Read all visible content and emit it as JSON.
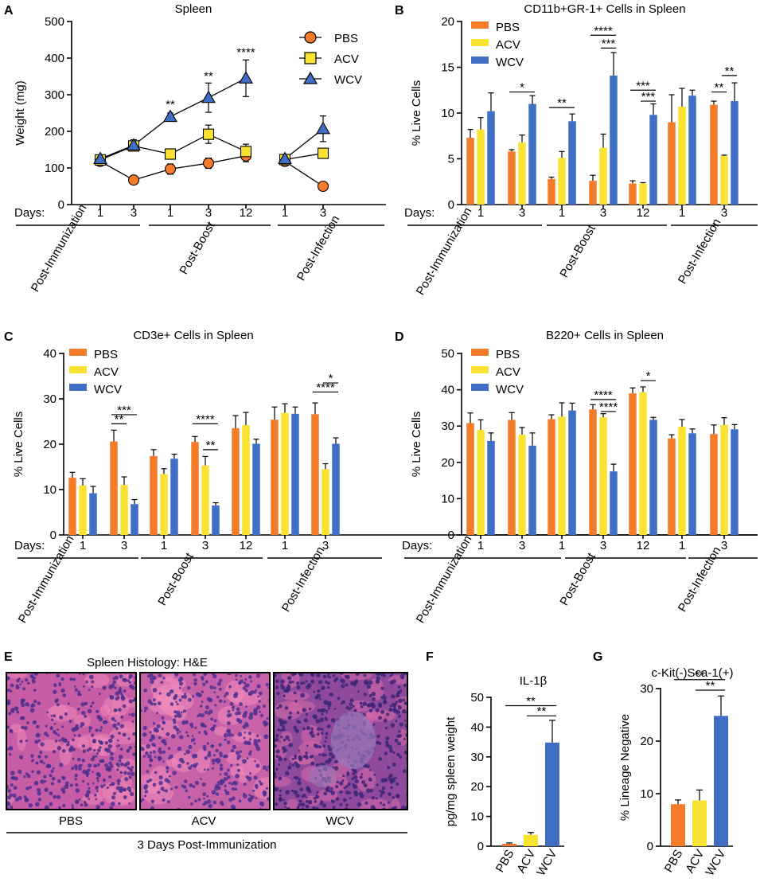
{
  "colors": {
    "PBS": "#F47B2A",
    "ACV": "#F9E232",
    "WCV": "#3F6EC4"
  },
  "groups": [
    "Post-Immunization",
    "Post-Boost",
    "Post-Infection"
  ],
  "days_label": "Days:",
  "chart_data": [
    {
      "panel": "A",
      "type": "line",
      "title": "Spleen",
      "ylabel": "Weight (mg)",
      "ylim": [
        0,
        500
      ],
      "yticks": [
        0,
        100,
        200,
        300,
        400,
        500
      ],
      "days": [
        "1",
        "3",
        "1",
        "3",
        "12",
        "1",
        "3"
      ],
      "legend": [
        "PBS",
        "ACV",
        "WCV"
      ],
      "series": [
        {
          "name": "PBS",
          "values": [
            118,
            67,
            97,
            113,
            133,
            118,
            50
          ],
          "errors": [
            10,
            4,
            14,
            14,
            16,
            10,
            6
          ]
        },
        {
          "name": "ACV",
          "values": [
            122,
            160,
            138,
            192,
            145,
            123,
            140
          ],
          "errors": [
            10,
            12,
            14,
            25,
            20,
            10,
            12
          ]
        },
        {
          "name": "WCV",
          "values": [
            125,
            162,
            240,
            292,
            345,
            125,
            207
          ],
          "errors": [
            8,
            15,
            10,
            40,
            50,
            8,
            35
          ]
        }
      ],
      "segments": [
        [
          0,
          1,
          2,
          3,
          4
        ],
        [
          5,
          6
        ]
      ],
      "annotations": [
        {
          "text": "**",
          "day_index": 2,
          "y": 263
        },
        {
          "text": "**",
          "day_index": 3,
          "y": 340
        },
        {
          "text": "****",
          "day_index": 4,
          "y": 405
        }
      ]
    },
    {
      "panel": "B",
      "type": "bar",
      "title": "CD11b+GR-1+ Cells in Spleen",
      "ylabel": "% Live Cells",
      "ylim": [
        0,
        20
      ],
      "yticks": [
        0,
        5,
        10,
        15,
        20
      ],
      "days": [
        "1",
        "3",
        "1",
        "3",
        "12",
        "1",
        "3"
      ],
      "legend": [
        "PBS",
        "ACV",
        "WCV"
      ],
      "series": [
        {
          "name": "PBS",
          "values": [
            7.3,
            5.8,
            2.8,
            2.6,
            2.3,
            9.0,
            10.9
          ],
          "errors": [
            0.9,
            0.2,
            0.2,
            0.6,
            0.3,
            3.0,
            0.4
          ]
        },
        {
          "name": "ACV",
          "values": [
            8.2,
            6.8,
            5.1,
            6.2,
            2.3,
            10.7,
            5.3
          ],
          "errors": [
            1.3,
            0.8,
            0.7,
            1.5,
            0.1,
            2.0,
            0.1
          ]
        },
        {
          "name": "WCV",
          "values": [
            10.2,
            11.0,
            9.1,
            14.1,
            9.8,
            11.9,
            11.3
          ],
          "errors": [
            2.0,
            0.9,
            0.8,
            2.5,
            1.2,
            0.6,
            2.0
          ]
        }
      ],
      "sig": [
        {
          "text": "*",
          "day_index": 1,
          "from": 0,
          "to": 2,
          "y": 12.3
        },
        {
          "text": "**",
          "day_index": 2,
          "from": 0,
          "to": 2,
          "y": 10.6
        },
        {
          "text": "****",
          "day_index": 3,
          "from": 0,
          "to": 2,
          "y": 18.5
        },
        {
          "text": "***",
          "day_index": 3,
          "from": 1,
          "to": 2,
          "y": 17.1
        },
        {
          "text": "***",
          "day_index": 4,
          "from": 0,
          "to": 2,
          "y": 12.5
        },
        {
          "text": "***",
          "day_index": 4,
          "from": 1,
          "to": 2,
          "y": 11.3
        },
        {
          "text": "**",
          "day_index": 6,
          "from": 0,
          "to": 1,
          "y": 12.3
        },
        {
          "text": "**",
          "day_index": 6,
          "from": 1,
          "to": 2,
          "y": 14.1
        }
      ]
    },
    {
      "panel": "C",
      "type": "bar",
      "title": "CD3e+ Cells in Spleen",
      "ylabel": "% Live Cells",
      "ylim": [
        0,
        40
      ],
      "yticks": [
        0,
        10,
        20,
        30,
        40
      ],
      "days": [
        "1",
        "3",
        "1",
        "3",
        "12",
        "1",
        "3"
      ],
      "legend": [
        "PBS",
        "ACV",
        "WCV"
      ],
      "series": [
        {
          "name": "PBS",
          "values": [
            12.6,
            20.6,
            17.4,
            20.5,
            23.5,
            25.4,
            26.6
          ],
          "errors": [
            1.2,
            2.5,
            1.4,
            1.2,
            2.8,
            2.8,
            2.5
          ]
        },
        {
          "name": "ACV",
          "values": [
            10.9,
            11.0,
            13.4,
            15.3,
            24.2,
            26.9,
            14.5
          ],
          "errors": [
            1.5,
            1.8,
            1.2,
            2.0,
            2.8,
            2.0,
            1.2
          ]
        },
        {
          "name": "WCV",
          "values": [
            9.2,
            6.8,
            16.8,
            6.5,
            20.1,
            26.7,
            20.1
          ],
          "errors": [
            1.5,
            1.0,
            1.0,
            0.6,
            1.0,
            1.5,
            1.3
          ]
        }
      ],
      "sig": [
        {
          "text": "***",
          "day_index": 1,
          "from": 0,
          "to": 2,
          "y": 26.5
        },
        {
          "text": "**",
          "day_index": 1,
          "from": 0,
          "to": 1,
          "y": 24.5
        },
        {
          "text": "****",
          "day_index": 3,
          "from": 0,
          "to": 2,
          "y": 24.5
        },
        {
          "text": "**",
          "day_index": 3,
          "from": 1,
          "to": 2,
          "y": 18.8
        },
        {
          "text": "*",
          "day_index": 6,
          "from": 1,
          "to": 2,
          "y": 33.5
        },
        {
          "text": "****",
          "day_index": 6,
          "from": 0,
          "to": 2,
          "y": 31.5
        }
      ]
    },
    {
      "panel": "D",
      "type": "bar",
      "title": "B220+ Cells in Spleen",
      "ylabel": "% Live Cells",
      "ylim": [
        0,
        50
      ],
      "yticks": [
        0,
        10,
        20,
        30,
        40,
        50
      ],
      "days": [
        "1",
        "3",
        "1",
        "3",
        "12",
        "1",
        "3"
      ],
      "legend": [
        "PBS",
        "ACV",
        "WCV"
      ],
      "series": [
        {
          "name": "PBS",
          "values": [
            30.8,
            31.7,
            31.9,
            34.6,
            39.0,
            26.6,
            27.8
          ],
          "errors": [
            2.8,
            2.0,
            1.2,
            1.3,
            1.5,
            1.0,
            2.5
          ]
        },
        {
          "name": "ACV",
          "values": [
            28.9,
            27.6,
            32.6,
            32.4,
            39.3,
            29.8,
            30.3
          ],
          "errors": [
            2.8,
            2.0,
            3.8,
            1.0,
            1.5,
            2.0,
            2.0
          ]
        },
        {
          "name": "WCV",
          "values": [
            25.9,
            24.6,
            34.3,
            17.5,
            31.7,
            28.0,
            29.1
          ],
          "errors": [
            2.2,
            3.5,
            2.0,
            2.0,
            0.7,
            1.2,
            1.3
          ]
        }
      ],
      "sig": [
        {
          "text": "****",
          "day_index": 3,
          "from": 0,
          "to": 2,
          "y": 37.3
        },
        {
          "text": "****",
          "day_index": 3,
          "from": 1,
          "to": 2,
          "y": 34.0
        },
        {
          "text": "*",
          "day_index": 4,
          "from": 1,
          "to": 2,
          "y": 42.5
        }
      ]
    },
    {
      "panel": "F",
      "type": "bar",
      "title": "IL-1β",
      "ylabel": "pg/mg spleen weight",
      "ylim": [
        0,
        50
      ],
      "yticks": [
        0,
        10,
        20,
        30,
        40,
        50
      ],
      "categories": [
        "PBS",
        "ACV",
        "WCV"
      ],
      "values": [
        0.8,
        3.8,
        34.8
      ],
      "errors": [
        0.3,
        0.8,
        7.5
      ],
      "sig": [
        {
          "text": "**",
          "from": 0,
          "to": 2,
          "y": 47.2
        },
        {
          "text": "**",
          "from": 1,
          "to": 2,
          "y": 43.8
        }
      ]
    },
    {
      "panel": "G",
      "type": "bar",
      "title": "c-Kit(-)Sca-1(+)",
      "ylabel": "% Lineage Negative",
      "ylim": [
        0,
        30
      ],
      "yticks": [
        0,
        10,
        20,
        30
      ],
      "categories": [
        "PBS",
        "ACV",
        "WCV"
      ],
      "values": [
        8.0,
        8.7,
        24.8
      ],
      "errors": [
        0.8,
        2.0,
        3.8
      ],
      "sig": [
        {
          "text": "**",
          "from": 0,
          "to": 2,
          "y": 31.7
        },
        {
          "text": "**",
          "from": 1,
          "to": 2,
          "y": 29.7
        }
      ]
    }
  ],
  "histology": {
    "panel": "E",
    "title": "Spleen Histology: H&E",
    "images": [
      {
        "label": "PBS",
        "bg": "#C65DA6",
        "dot": "#4B2E8C",
        "pink": "#EE86B8"
      },
      {
        "label": "ACV",
        "bg": "#C762A8",
        "dot": "#4E3090",
        "pink": "#F08CBC"
      },
      {
        "label": "WCV",
        "bg": "#8F4A9C",
        "dot": "#3C2578",
        "pink": "#D96AA8"
      }
    ],
    "caption": "3 Days Post-Immunization"
  }
}
